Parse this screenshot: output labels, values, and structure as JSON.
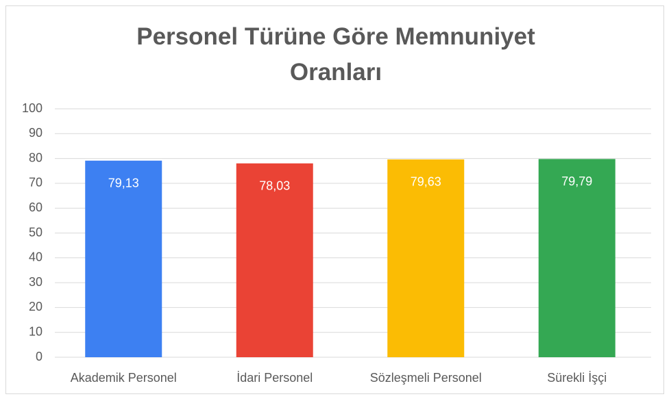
{
  "chart_data": {
    "type": "bar",
    "title": "Personel Türüne Göre Memnuniyet Oranları",
    "categories": [
      "Akademik Personel",
      "İdari Personel",
      "Sözleşmeli Personel",
      "Sürekli İşçi"
    ],
    "values": [
      79.13,
      78.03,
      79.63,
      79.79
    ],
    "value_labels": [
      "79,13",
      "78,03",
      "79,63",
      "79,79"
    ],
    "colors": [
      "#3d80f2",
      "#ea4335",
      "#fbbc04",
      "#34a853"
    ],
    "ylim": [
      0,
      100
    ],
    "yticks": [
      0,
      10,
      20,
      30,
      40,
      50,
      60,
      70,
      80,
      90,
      100
    ],
    "grid": true
  }
}
